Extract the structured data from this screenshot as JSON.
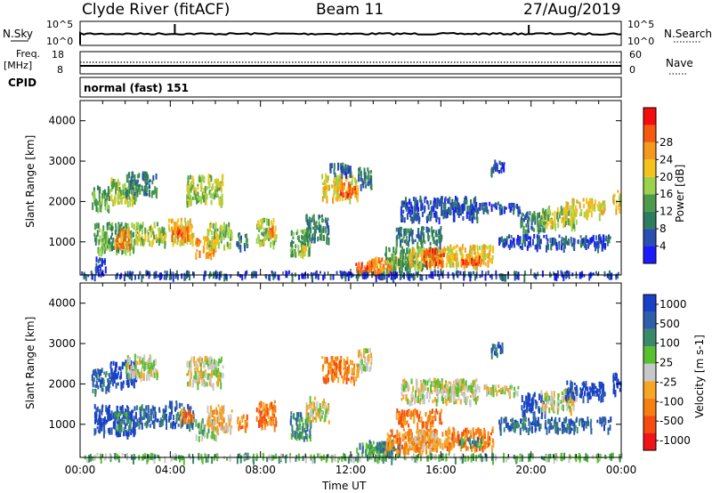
{
  "header": {
    "station": "Clyde River (fitACF)",
    "beam": "Beam 11",
    "date": "27/Aug/2019"
  },
  "mode_label": "normal (fast) 151",
  "nsky_panel": {
    "left_label": "N.Sky",
    "right_label": "N.Search",
    "left_top_tick": "10^5",
    "left_bottom_tick": "10^0",
    "right_top_tick": "10^5",
    "right_bottom_tick": "10^0"
  },
  "freq_panel": {
    "left_label_line1": "Freq.",
    "left_label_line2": "[MHz]",
    "left_label_line3": "CPID",
    "right_label": "Nave",
    "left_top_tick": "18",
    "left_bottom_tick": "8",
    "right_top_tick": "60",
    "right_bottom_tick": "0"
  },
  "colors": {
    "power": [
      "#1a1aff",
      "#2a4fb0",
      "#2e7d5e",
      "#4c9a4a",
      "#9bd24a",
      "#f5c21b",
      "#f5991a",
      "#f55a10",
      "#f50d0d"
    ],
    "velocity": [
      "#1940c8",
      "#2d5fa8",
      "#3a8a6a",
      "#58c030",
      "#c8c8c8",
      "#f5a623",
      "#f57f11",
      "#f54a10",
      "#f01414"
    ]
  },
  "chart_data": [
    {
      "type": "heatmap",
      "title": "Power",
      "ylabel": "Slant Range [km]",
      "ylim": [
        180,
        4500
      ],
      "yticks": [
        "1000",
        "2000",
        "3000",
        "4000"
      ],
      "colorbar_label": "Power [dB]",
      "colorbar_ticks": [
        "4",
        "8",
        "12",
        "16",
        "20",
        "24",
        "28"
      ],
      "clim": [
        0,
        30
      ],
      "patches": [
        {
          "t0": 0.5,
          "t1": 1.3,
          "r0": 1850,
          "r1": 2400,
          "v": 12
        },
        {
          "t0": 1.3,
          "t1": 2.5,
          "r0": 2000,
          "r1": 2600,
          "v": 17
        },
        {
          "t0": 2.0,
          "t1": 3.4,
          "r0": 2200,
          "r1": 2750,
          "v": 10
        },
        {
          "t0": 0.6,
          "t1": 2.4,
          "r0": 800,
          "r1": 1500,
          "v": 14
        },
        {
          "t0": 1.5,
          "t1": 2.2,
          "r0": 900,
          "r1": 1350,
          "v": 22
        },
        {
          "t0": 2.4,
          "t1": 3.8,
          "r0": 1000,
          "r1": 1500,
          "v": 15
        },
        {
          "t0": 0.6,
          "t1": 1.1,
          "r0": 300,
          "r1": 650,
          "v": 8
        },
        {
          "t0": 3.9,
          "t1": 5.0,
          "r0": 1000,
          "r1": 1600,
          "v": 20
        },
        {
          "t0": 4.0,
          "t1": 4.8,
          "r0": 1100,
          "r1": 1400,
          "v": 27
        },
        {
          "t0": 4.7,
          "t1": 6.3,
          "r0": 2000,
          "r1": 2700,
          "v": 16
        },
        {
          "t0": 5.1,
          "t1": 6.0,
          "r0": 700,
          "r1": 1150,
          "v": 24
        },
        {
          "t0": 5.6,
          "t1": 6.7,
          "r0": 900,
          "r1": 1500,
          "v": 17
        },
        {
          "t0": 6.9,
          "t1": 7.4,
          "r0": 900,
          "r1": 1250,
          "v": 10
        },
        {
          "t0": 7.8,
          "t1": 8.7,
          "r0": 1000,
          "r1": 1600,
          "v": 15
        },
        {
          "t0": 8.3,
          "t1": 8.6,
          "r0": 1150,
          "r1": 1450,
          "v": 22
        },
        {
          "t0": 9.3,
          "t1": 10.2,
          "r0": 700,
          "r1": 1350,
          "v": 13
        },
        {
          "t0": 9.6,
          "t1": 10.0,
          "r0": 700,
          "r1": 950,
          "v": 20
        },
        {
          "t0": 10.0,
          "t1": 11.0,
          "r0": 1100,
          "r1": 1700,
          "v": 9
        },
        {
          "t0": 10.7,
          "t1": 12.3,
          "r0": 2100,
          "r1": 2700,
          "v": 19
        },
        {
          "t0": 11.5,
          "t1": 12.2,
          "r0": 2200,
          "r1": 2500,
          "v": 25
        },
        {
          "t0": 12.3,
          "t1": 12.9,
          "r0": 2400,
          "r1": 2900,
          "v": 10
        },
        {
          "t0": 11.0,
          "t1": 12.0,
          "r0": 2700,
          "r1": 3000,
          "v": 8
        },
        {
          "t0": 12.2,
          "t1": 13.7,
          "r0": 200,
          "r1": 550,
          "v": 26
        },
        {
          "t0": 12.8,
          "t1": 14.2,
          "r0": 300,
          "r1": 650,
          "v": 22
        },
        {
          "t0": 13.5,
          "t1": 15.8,
          "r0": 350,
          "r1": 900,
          "v": 14
        },
        {
          "t0": 14.5,
          "t1": 16.5,
          "r0": 450,
          "r1": 900,
          "v": 20
        },
        {
          "t0": 15.2,
          "t1": 16.1,
          "r0": 500,
          "r1": 850,
          "v": 25
        },
        {
          "t0": 16.2,
          "t1": 18.3,
          "r0": 450,
          "r1": 950,
          "v": 21
        },
        {
          "t0": 16.8,
          "t1": 17.8,
          "r0": 500,
          "r1": 700,
          "v": 27
        },
        {
          "t0": 14.0,
          "t1": 16.0,
          "r0": 1000,
          "r1": 1400,
          "v": 9
        },
        {
          "t0": 14.2,
          "t1": 17.6,
          "r0": 1600,
          "r1": 2150,
          "v": 8
        },
        {
          "t0": 16.0,
          "t1": 19.5,
          "r0": 1800,
          "r1": 2000,
          "v": 6
        },
        {
          "t0": 18.2,
          "t1": 18.8,
          "r0": 2750,
          "r1": 3050,
          "v": 7
        },
        {
          "t0": 19.5,
          "t1": 20.6,
          "r0": 1300,
          "r1": 1800,
          "v": 11
        },
        {
          "t0": 20.4,
          "t1": 22.0,
          "r0": 1400,
          "r1": 1900,
          "v": 17
        },
        {
          "t0": 21.5,
          "t1": 23.3,
          "r0": 1700,
          "r1": 2100,
          "v": 19
        },
        {
          "t0": 23.6,
          "t1": 23.95,
          "r0": 1800,
          "r1": 2300,
          "v": 21
        },
        {
          "t0": 18.5,
          "t1": 23.5,
          "r0": 900,
          "r1": 1200,
          "v": 6
        },
        {
          "t0": 0.0,
          "t1": 24.0,
          "r0": 180,
          "r1": 300,
          "v": 7
        }
      ]
    },
    {
      "type": "heatmap",
      "title": "Velocity",
      "ylabel": "Slant Range [km]",
      "xlabel": "Time UT",
      "ylim": [
        180,
        4500
      ],
      "yticks": [
        "1000",
        "2000",
        "3000",
        "4000"
      ],
      "xticks": [
        "00:00",
        "04:00",
        "08:00",
        "12:00",
        "16:00",
        "20:00",
        "00:00"
      ],
      "colorbar_label": "Velocity [m s-1]",
      "colorbar_ticks": [
        "1000",
        "500",
        "100",
        "25",
        "-25",
        "-100",
        "-500",
        "-1000"
      ],
      "patches": [
        {
          "t0": 0.5,
          "t1": 1.3,
          "r0": 1850,
          "r1": 2400,
          "v": 1
        },
        {
          "t0": 1.3,
          "t1": 2.5,
          "r0": 2000,
          "r1": 2600,
          "v": 0
        },
        {
          "t0": 2.0,
          "t1": 3.4,
          "r0": 2200,
          "r1": 2750,
          "v": 4
        },
        {
          "t0": 0.6,
          "t1": 2.4,
          "r0": 800,
          "r1": 1500,
          "v": 0
        },
        {
          "t0": 1.5,
          "t1": 2.2,
          "r0": 900,
          "r1": 1350,
          "v": 2
        },
        {
          "t0": 2.4,
          "t1": 3.8,
          "r0": 1000,
          "r1": 1500,
          "v": 1
        },
        {
          "t0": 3.9,
          "t1": 5.0,
          "r0": 1000,
          "r1": 1600,
          "v": 1
        },
        {
          "t0": 4.4,
          "t1": 5.0,
          "r0": 1100,
          "r1": 1400,
          "v": 6
        },
        {
          "t0": 4.7,
          "t1": 6.3,
          "r0": 2000,
          "r1": 2700,
          "v": 4
        },
        {
          "t0": 5.1,
          "t1": 6.0,
          "r0": 700,
          "r1": 1150,
          "v": 3
        },
        {
          "t0": 5.6,
          "t1": 6.7,
          "r0": 900,
          "r1": 1500,
          "v": 5
        },
        {
          "t0": 6.9,
          "t1": 7.4,
          "r0": 900,
          "r1": 1250,
          "v": 6
        },
        {
          "t0": 7.8,
          "t1": 8.7,
          "r0": 1000,
          "r1": 1600,
          "v": 6
        },
        {
          "t0": 9.3,
          "t1": 10.2,
          "r0": 700,
          "r1": 1350,
          "v": 2
        },
        {
          "t0": 10.0,
          "t1": 11.0,
          "r0": 1100,
          "r1": 1700,
          "v": 4
        },
        {
          "t0": 10.7,
          "t1": 12.3,
          "r0": 2100,
          "r1": 2700,
          "v": 6
        },
        {
          "t0": 12.3,
          "t1": 12.9,
          "r0": 2400,
          "r1": 2900,
          "v": 4
        },
        {
          "t0": 12.2,
          "t1": 13.7,
          "r0": 200,
          "r1": 550,
          "v": 2
        },
        {
          "t0": 12.8,
          "t1": 14.2,
          "r0": 300,
          "r1": 650,
          "v": 2
        },
        {
          "t0": 13.5,
          "t1": 15.8,
          "r0": 350,
          "r1": 900,
          "v": 6
        },
        {
          "t0": 14.5,
          "t1": 16.5,
          "r0": 450,
          "r1": 900,
          "v": 5
        },
        {
          "t0": 16.2,
          "t1": 18.3,
          "r0": 450,
          "r1": 950,
          "v": 6
        },
        {
          "t0": 16.8,
          "t1": 17.8,
          "r0": 500,
          "r1": 700,
          "v": 2
        },
        {
          "t0": 14.0,
          "t1": 16.0,
          "r0": 1000,
          "r1": 1400,
          "v": 6
        },
        {
          "t0": 14.2,
          "t1": 17.6,
          "r0": 1600,
          "r1": 2150,
          "v": 4
        },
        {
          "t0": 16.0,
          "t1": 19.5,
          "r0": 1800,
          "r1": 2000,
          "v": 4
        },
        {
          "t0": 18.2,
          "t1": 18.8,
          "r0": 2750,
          "r1": 3050,
          "v": 1
        },
        {
          "t0": 19.5,
          "t1": 20.6,
          "r0": 1300,
          "r1": 1800,
          "v": 0
        },
        {
          "t0": 20.4,
          "t1": 22.0,
          "r0": 1400,
          "r1": 1900,
          "v": 4
        },
        {
          "t0": 21.5,
          "t1": 23.3,
          "r0": 1700,
          "r1": 2100,
          "v": 0
        },
        {
          "t0": 23.6,
          "t1": 23.95,
          "r0": 1800,
          "r1": 2300,
          "v": 0
        },
        {
          "t0": 18.5,
          "t1": 23.5,
          "r0": 900,
          "r1": 1200,
          "v": 1
        },
        {
          "t0": 0.0,
          "t1": 24.0,
          "r0": 180,
          "r1": 300,
          "v": 3
        }
      ]
    }
  ]
}
